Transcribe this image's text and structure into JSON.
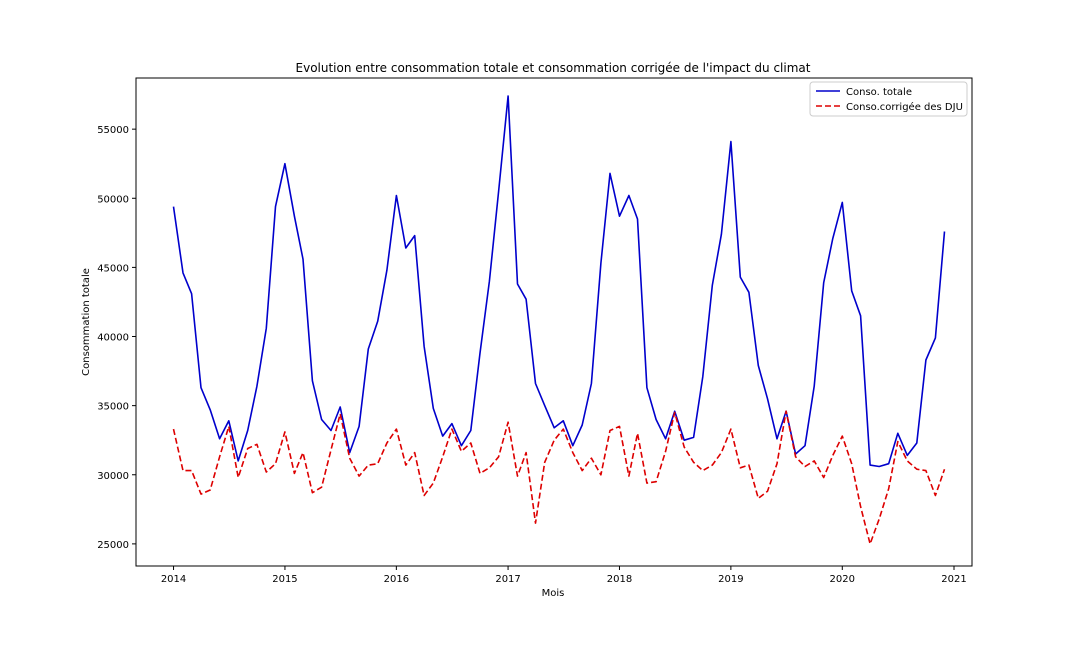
{
  "chart_data": {
    "type": "line",
    "title": "Evolution entre consommation totale et consommation corrigée de l'impact du climat",
    "xlabel": "Mois",
    "ylabel": "Consommation totale",
    "xlim": [
      "2013-08-31",
      "2021-03-01"
    ],
    "ylim": [
      23400,
      58700
    ],
    "xticks": [
      {
        "date": "2014-01-01",
        "label": "2014"
      },
      {
        "date": "2015-01-01",
        "label": "2015"
      },
      {
        "date": "2016-01-01",
        "label": "2016"
      },
      {
        "date": "2017-01-01",
        "label": "2017"
      },
      {
        "date": "2018-01-01",
        "label": "2018"
      },
      {
        "date": "2019-01-01",
        "label": "2019"
      },
      {
        "date": "2020-01-01",
        "label": "2020"
      },
      {
        "date": "2021-01-01",
        "label": "2021"
      }
    ],
    "yticks": [
      {
        "value": 25000,
        "label": "25000"
      },
      {
        "value": 30000,
        "label": "30000"
      },
      {
        "value": 35000,
        "label": "35000"
      },
      {
        "value": 40000,
        "label": "40000"
      },
      {
        "value": 45000,
        "label": "45000"
      },
      {
        "value": 50000,
        "label": "50000"
      },
      {
        "value": 55000,
        "label": "55000"
      }
    ],
    "grid": false,
    "legend_position": "upper right",
    "x": [
      "2014-01",
      "2014-02",
      "2014-03",
      "2014-04",
      "2014-05",
      "2014-06",
      "2014-07",
      "2014-08",
      "2014-09",
      "2014-10",
      "2014-11",
      "2014-12",
      "2015-01",
      "2015-02",
      "2015-03",
      "2015-04",
      "2015-05",
      "2015-06",
      "2015-07",
      "2015-08",
      "2015-09",
      "2015-10",
      "2015-11",
      "2015-12",
      "2016-01",
      "2016-02",
      "2016-03",
      "2016-04",
      "2016-05",
      "2016-06",
      "2016-07",
      "2016-08",
      "2016-09",
      "2016-10",
      "2016-11",
      "2016-12",
      "2017-01",
      "2017-02",
      "2017-03",
      "2017-04",
      "2017-05",
      "2017-06",
      "2017-07",
      "2017-08",
      "2017-09",
      "2017-10",
      "2017-11",
      "2017-12",
      "2018-01",
      "2018-02",
      "2018-03",
      "2018-04",
      "2018-05",
      "2018-06",
      "2018-07",
      "2018-08",
      "2018-09",
      "2018-10",
      "2018-11",
      "2018-12",
      "2019-01",
      "2019-02",
      "2019-03",
      "2019-04",
      "2019-05",
      "2019-06",
      "2019-07",
      "2019-08",
      "2019-09",
      "2019-10",
      "2019-11",
      "2019-12",
      "2020-01",
      "2020-02",
      "2020-03",
      "2020-04",
      "2020-05",
      "2020-06",
      "2020-07",
      "2020-08",
      "2020-09",
      "2020-10",
      "2020-11",
      "2020-12"
    ],
    "series": [
      {
        "name": "Conso. totale",
        "color": "#0000cc",
        "style": "solid",
        "values": [
          49400,
          44600,
          43100,
          36300,
          34700,
          32600,
          33900,
          31000,
          33200,
          36400,
          40600,
          49400,
          52500,
          48700,
          45600,
          36800,
          34000,
          33200,
          34900,
          31600,
          33500,
          39100,
          41100,
          44800,
          50200,
          46400,
          47300,
          39300,
          34800,
          32800,
          33700,
          32100,
          33200,
          38800,
          44000,
          50500,
          57400,
          43800,
          42700,
          36600,
          35000,
          33400,
          33900,
          32100,
          33600,
          36600,
          45300,
          51800,
          48700,
          50200,
          48500,
          36300,
          34000,
          32600,
          34600,
          32500,
          32700,
          37100,
          43700,
          47400,
          54100,
          44300,
          43200,
          37900,
          35500,
          32600,
          34600,
          31500,
          32100,
          36400,
          43900,
          47100,
          49700,
          43300,
          41500,
          30700,
          30600,
          30800,
          33000,
          31400,
          32300,
          38300,
          39900,
          47600
        ]
      },
      {
        "name": "Conso.corrigée des DJU",
        "color": "#dd0000",
        "style": "dashed",
        "values": [
          33300,
          30300,
          30300,
          28600,
          28900,
          31300,
          33500,
          29800,
          31900,
          32200,
          30200,
          30800,
          33100,
          30100,
          31600,
          28700,
          29100,
          31800,
          34400,
          31200,
          29900,
          30700,
          30800,
          32300,
          33300,
          30700,
          31600,
          28500,
          29400,
          31300,
          33300,
          31700,
          32300,
          30100,
          30500,
          31300,
          33800,
          29900,
          31600,
          26500,
          30900,
          32500,
          33300,
          31600,
          30300,
          31200,
          30000,
          33200,
          33500,
          29900,
          33000,
          29400,
          29500,
          31700,
          34500,
          32000,
          30900,
          30300,
          30700,
          31600,
          33300,
          30500,
          30700,
          28300,
          28800,
          30800,
          34600,
          31300,
          30600,
          31000,
          29800,
          31400,
          32800,
          30800,
          27700,
          25000,
          26800,
          29000,
          32400,
          31000,
          30400,
          30300,
          28500,
          30400
        ]
      }
    ]
  }
}
